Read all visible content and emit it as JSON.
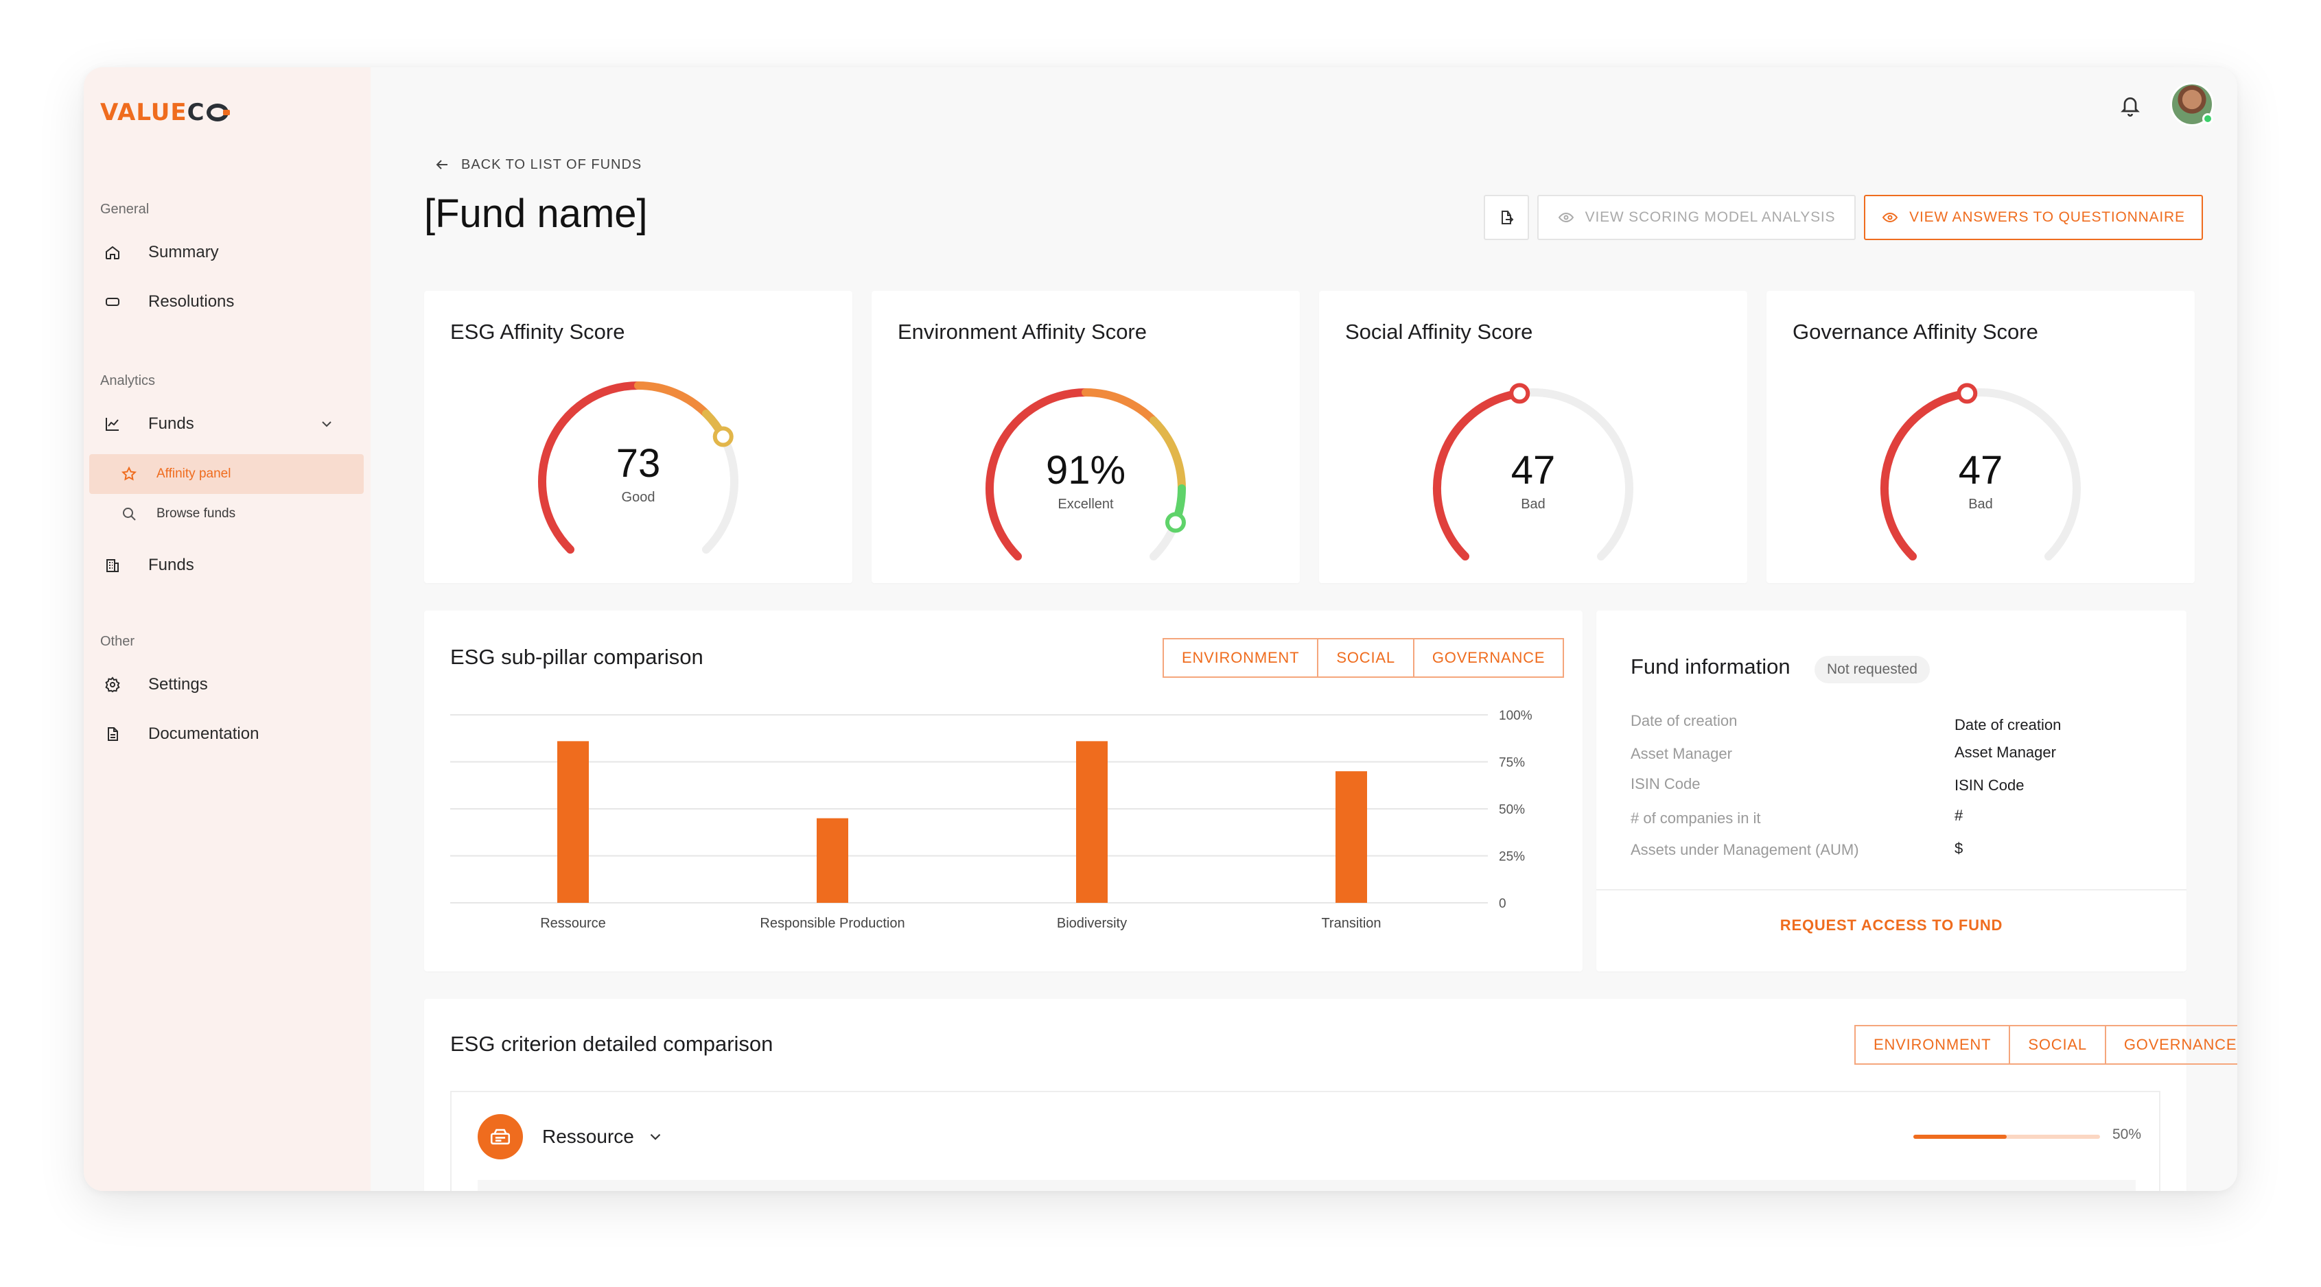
{
  "brand": {
    "logo_text_a": "VALUE",
    "logo_text_b": "C"
  },
  "sidebar": {
    "sections": [
      {
        "label": "General"
      },
      {
        "label": "Analytics"
      },
      {
        "label": "Other"
      }
    ],
    "items": {
      "summary": "Summary",
      "resolutions": "Resolutions",
      "funds_group": "Funds",
      "affinity_panel": "Affinity panel",
      "browse_funds": "Browse funds",
      "funds": "Funds",
      "settings": "Settings",
      "documentation": "Documentation"
    }
  },
  "header": {
    "back_label": "BACK TO LIST OF FUNDS",
    "title": "[Fund name]",
    "btn_scoring": "VIEW SCORING MODEL ANALYSIS",
    "btn_answers": "VIEW ANSWERS TO QUESTIONNAIRE"
  },
  "gauges": [
    {
      "title": "ESG Affinity Score",
      "value": "73",
      "score": 73,
      "label": "Good"
    },
    {
      "title": "Environment Affinity Score",
      "value": "91%",
      "score": 91,
      "label": "Excellent"
    },
    {
      "title": "Social Affinity Score",
      "value": "47",
      "score": 47,
      "label": "Bad"
    },
    {
      "title": "Governance Affinity Score",
      "value": "47",
      "score": 47,
      "label": "Bad"
    }
  ],
  "subpillar": {
    "title": "ESG sub-pillar comparison",
    "tabs": [
      "ENVIRONMENT",
      "SOCIAL",
      "GOVERNANCE"
    ]
  },
  "chart_data": {
    "type": "bar",
    "categories": [
      "Ressource",
      "Responsible Production",
      "Biodiversity",
      "Transition"
    ],
    "values": [
      86,
      45,
      86,
      70
    ],
    "ylim": [
      0,
      100
    ],
    "yticks": [
      "0",
      "25%",
      "50%",
      "75%",
      "100%"
    ],
    "title": "ESG sub-pillar comparison",
    "xlabel": "",
    "ylabel": "",
    "grid": true,
    "color": "#ef6c1e"
  },
  "fund_info": {
    "title": "Fund information",
    "badge": "Not requested",
    "rows": [
      {
        "label": "Date of creation",
        "value": "Date of creation"
      },
      {
        "label": "Asset Manager",
        "value": "Asset Manager"
      },
      {
        "label": "ISIN Code",
        "value": "ISIN Code"
      },
      {
        "label": "# of companies in it",
        "value": "#"
      },
      {
        "label": "Assets under Management  (AUM)",
        "value": "$"
      }
    ],
    "request_label": "REQUEST ACCESS TO FUND"
  },
  "criterion": {
    "title": "ESG criterion detailed comparison",
    "tabs": [
      "ENVIRONMENT",
      "SOCIAL",
      "GOVERNANCE"
    ],
    "row_name": "Ressource",
    "progress": 50,
    "progress_label": "50%"
  },
  "colors": {
    "accent": "#ef6c1e",
    "red": "#e0403c",
    "orange": "#f08a3c",
    "yellow": "#e2b64a",
    "green": "#5fd36a",
    "track": "#eeeeee"
  }
}
